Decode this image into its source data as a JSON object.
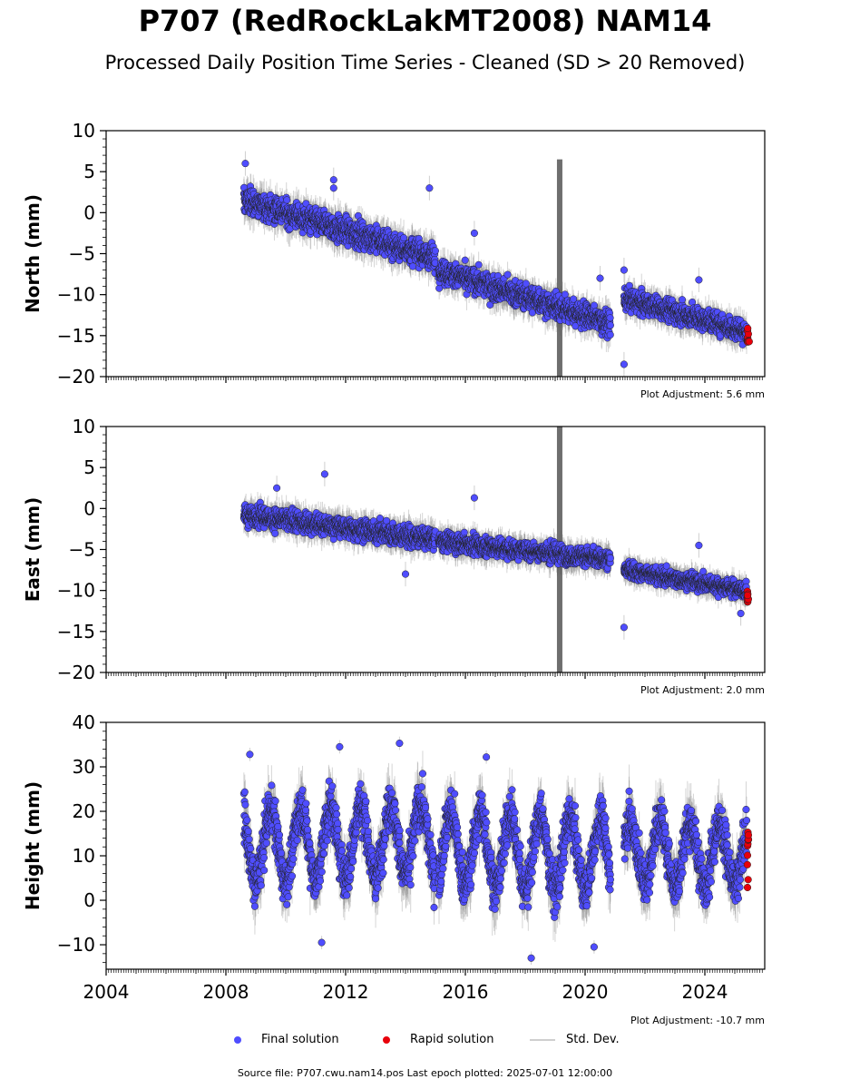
{
  "title": "P707 (RedRockLakMT2008) NAM14",
  "subtitle": "Processed Daily Position Time Series - Cleaned (SD > 20 Removed)",
  "colors": {
    "final": "#4f4dff",
    "rapid": "#e8000b",
    "stddev": "#888888",
    "marker_edge": "#000000"
  },
  "legend": {
    "final_label": "Final solution",
    "rapid_label": "Rapid solution",
    "stddev_label": "Std. Dev."
  },
  "footer": "Source file: P707.cwu.nam14.pos  Last epoch plotted: 2025-07-01 12:00:00",
  "chart_data": [
    {
      "type": "scatter",
      "ylabel": "North (mm)",
      "xlim": [
        2004,
        2026
      ],
      "ylim": [
        -20,
        10
      ],
      "yticks": [
        10,
        5,
        0,
        -5,
        -10,
        -15,
        -20
      ],
      "xticks": [
        2004,
        2008,
        2012,
        2016,
        2020,
        2024
      ],
      "show_xticklabels": false,
      "adjustment": "Plot Adjustment: 5.6 mm",
      "segments": [
        {
          "x": [
            2008.6,
            2015.0
          ],
          "y": [
            1.5,
            -5.5
          ],
          "spread": 1.4,
          "sd": 1.5
        },
        {
          "x": [
            2015.1,
            2020.85
          ],
          "y": [
            -7.0,
            -13.5
          ],
          "spread": 1.3,
          "sd": 1.4
        },
        {
          "x": [
            2021.3,
            2025.4
          ],
          "y": [
            -10.5,
            -14.5
          ],
          "spread": 1.2,
          "sd": 1.3
        }
      ],
      "outliers": [
        [
          2008.65,
          6.0
        ],
        [
          2011.6,
          4.0
        ],
        [
          2011.6,
          3.0
        ],
        [
          2014.8,
          3.0
        ],
        [
          2016.3,
          -2.5
        ],
        [
          2020.5,
          -8.0
        ],
        [
          2021.3,
          -18.5
        ],
        [
          2021.3,
          -7.0
        ],
        [
          2023.8,
          -8.2
        ]
      ],
      "rapid": {
        "x": [
          2025.42,
          2025.5
        ],
        "y": [
          -14.0,
          -15.8
        ]
      },
      "sd_spike": {
        "x": 2019.15,
        "low": -20,
        "high": 6.5
      }
    },
    {
      "type": "scatter",
      "ylabel": "East (mm)",
      "xlim": [
        2004,
        2026
      ],
      "ylim": [
        -20,
        10
      ],
      "yticks": [
        10,
        5,
        0,
        -5,
        -10,
        -15,
        -20
      ],
      "xticks": [
        2004,
        2008,
        2012,
        2016,
        2020,
        2024
      ],
      "show_xticklabels": false,
      "adjustment": "Plot Adjustment: 2.0 mm",
      "segments": [
        {
          "x": [
            2008.6,
            2015.0
          ],
          "y": [
            -0.8,
            -3.8
          ],
          "spread": 1.1,
          "sd": 1.3
        },
        {
          "x": [
            2015.1,
            2020.85
          ],
          "y": [
            -4.0,
            -6.2
          ],
          "spread": 1.0,
          "sd": 1.2
        },
        {
          "x": [
            2021.3,
            2025.4
          ],
          "y": [
            -7.5,
            -10.0
          ],
          "spread": 0.9,
          "sd": 1.1
        }
      ],
      "outliers": [
        [
          2009.7,
          2.5
        ],
        [
          2011.3,
          4.2
        ],
        [
          2014.0,
          -8.0
        ],
        [
          2016.3,
          1.3
        ],
        [
          2021.3,
          -14.5
        ],
        [
          2023.8,
          -4.5
        ],
        [
          2025.2,
          -12.8
        ]
      ],
      "rapid": {
        "x": [
          2025.42,
          2025.5
        ],
        "y": [
          -10.0,
          -11.5
        ]
      },
      "sd_spike": {
        "x": 2019.15,
        "low": -20,
        "high": 10
      }
    },
    {
      "type": "scatter",
      "ylabel": "Height (mm)",
      "xlim": [
        2004,
        2026
      ],
      "ylim": [
        -15.5,
        40
      ],
      "yticks": [
        40,
        30,
        20,
        10,
        0,
        -10
      ],
      "xticks": [
        2004,
        2008,
        2012,
        2016,
        2020,
        2024
      ],
      "xticklabels": [
        "2004",
        "2008",
        "2012",
        "2016",
        "2020",
        "2024"
      ],
      "show_xticklabels": true,
      "adjustment": "Plot Adjustment: -10.7 mm",
      "segments": [
        {
          "x": [
            2008.6,
            2015.0
          ],
          "y": [
            12.0,
            14.0
          ],
          "spread": 4.5,
          "sd": 4.5,
          "seasonal": 8.0
        },
        {
          "x": [
            2015.1,
            2020.85
          ],
          "y": [
            12.0,
            10.0
          ],
          "spread": 4.5,
          "sd": 4.5,
          "seasonal": 8.0
        },
        {
          "x": [
            2021.3,
            2025.4
          ],
          "y": [
            11.0,
            10.0
          ],
          "spread": 4.5,
          "sd": 4.5,
          "seasonal": 7.0
        }
      ],
      "outliers": [
        [
          2008.8,
          32.8
        ],
        [
          2011.8,
          34.5
        ],
        [
          2013.8,
          35.3
        ],
        [
          2016.7,
          32.2
        ],
        [
          2018.2,
          -13.0
        ],
        [
          2020.3,
          -10.5
        ],
        [
          2011.2,
          -9.5
        ]
      ],
      "rapid": {
        "x": [
          2025.42,
          2025.5
        ],
        "y": [
          2.0,
          16.2
        ]
      },
      "sd_spike": null
    }
  ]
}
